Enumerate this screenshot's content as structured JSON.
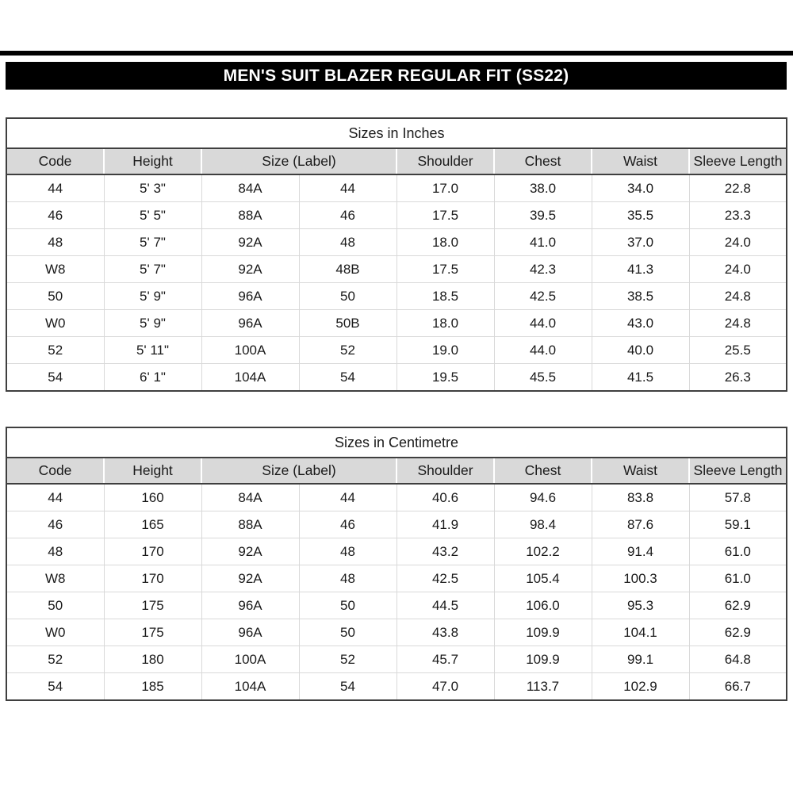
{
  "page": {
    "title": "MEN'S SUIT BLAZER REGULAR FIT (SS22)"
  },
  "colors": {
    "title_bar_bg": "#000000",
    "title_bar_text": "#ffffff",
    "header_bg": "#d9d9d9",
    "outer_border": "#3f3f3f",
    "grid_line": "#d9d9d9"
  },
  "tables": [
    {
      "title": "Sizes in Inches",
      "headers": [
        "Code",
        "Height",
        "Size (Label)",
        "Shoulder",
        "Chest",
        "Waist",
        "Sleeve Length"
      ],
      "header_spans": [
        1,
        1,
        2,
        1,
        1,
        1,
        1
      ],
      "rows": [
        [
          "44",
          "5' 3\"",
          "84A",
          "44",
          "17.0",
          "38.0",
          "34.0",
          "22.8"
        ],
        [
          "46",
          "5' 5\"",
          "88A",
          "46",
          "17.5",
          "39.5",
          "35.5",
          "23.3"
        ],
        [
          "48",
          "5' 7\"",
          "92A",
          "48",
          "18.0",
          "41.0",
          "37.0",
          "24.0"
        ],
        [
          "W8",
          "5' 7\"",
          "92A",
          "48B",
          "17.5",
          "42.3",
          "41.3",
          "24.0"
        ],
        [
          "50",
          "5' 9\"",
          "96A",
          "50",
          "18.5",
          "42.5",
          "38.5",
          "24.8"
        ],
        [
          "W0",
          "5' 9\"",
          "96A",
          "50B",
          "18.0",
          "44.0",
          "43.0",
          "24.8"
        ],
        [
          "52",
          "5' 11\"",
          "100A",
          "52",
          "19.0",
          "44.0",
          "40.0",
          "25.5"
        ],
        [
          "54",
          "6' 1\"",
          "104A",
          "54",
          "19.5",
          "45.5",
          "41.5",
          "26.3"
        ]
      ]
    },
    {
      "title": "Sizes in Centimetre",
      "headers": [
        "Code",
        "Height",
        "Size (Label)",
        "Shoulder",
        "Chest",
        "Waist",
        "Sleeve Length"
      ],
      "header_spans": [
        1,
        1,
        2,
        1,
        1,
        1,
        1
      ],
      "rows": [
        [
          "44",
          "160",
          "84A",
          "44",
          "40.6",
          "94.6",
          "83.8",
          "57.8"
        ],
        [
          "46",
          "165",
          "88A",
          "46",
          "41.9",
          "98.4",
          "87.6",
          "59.1"
        ],
        [
          "48",
          "170",
          "92A",
          "48",
          "43.2",
          "102.2",
          "91.4",
          "61.0"
        ],
        [
          "W8",
          "170",
          "92A",
          "48",
          "42.5",
          "105.4",
          "100.3",
          "61.0"
        ],
        [
          "50",
          "175",
          "96A",
          "50",
          "44.5",
          "106.0",
          "95.3",
          "62.9"
        ],
        [
          "W0",
          "175",
          "96A",
          "50",
          "43.8",
          "109.9",
          "104.1",
          "62.9"
        ],
        [
          "52",
          "180",
          "100A",
          "52",
          "45.7",
          "109.9",
          "99.1",
          "64.8"
        ],
        [
          "54",
          "185",
          "104A",
          "54",
          "47.0",
          "113.7",
          "102.9",
          "66.7"
        ]
      ]
    }
  ]
}
